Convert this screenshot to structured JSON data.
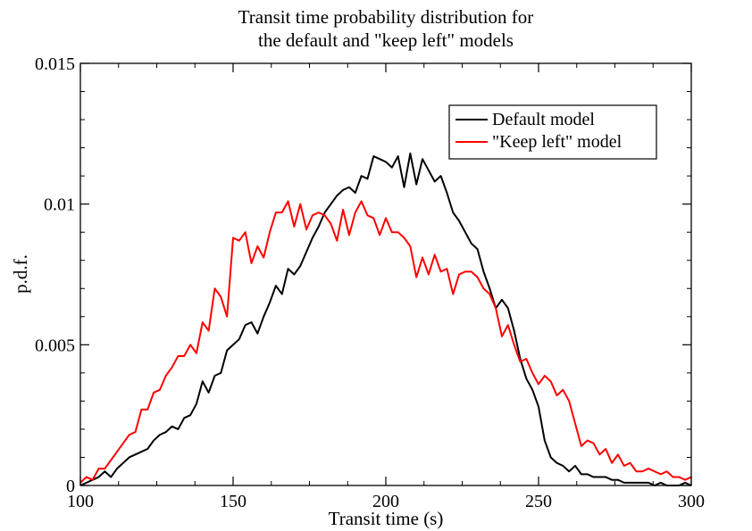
{
  "chart_data": {
    "type": "line",
    "title": [
      "Transit time probability distribution for",
      "the default and \"keep left\" models"
    ],
    "xlabel": "Transit time (s)",
    "ylabel": "p.d.f.",
    "xlim": [
      100,
      300
    ],
    "ylim": [
      0,
      0.015
    ],
    "xticks": [
      100,
      150,
      200,
      250,
      300
    ],
    "xtick_labels": [
      "100",
      "150",
      "200",
      "250",
      "300"
    ],
    "yticks": [
      0,
      0.005,
      0.01,
      0.015
    ],
    "ytick_labels": [
      "0",
      "0.005",
      "0.01",
      "0.015"
    ],
    "grid": false,
    "legend_position": "top-right",
    "x": [
      100,
      102,
      104,
      106,
      108,
      110,
      112,
      114,
      116,
      118,
      120,
      122,
      124,
      126,
      128,
      130,
      132,
      134,
      136,
      138,
      140,
      142,
      144,
      146,
      148,
      150,
      152,
      154,
      156,
      158,
      160,
      162,
      164,
      166,
      168,
      170,
      172,
      174,
      176,
      178,
      180,
      182,
      184,
      186,
      188,
      190,
      192,
      194,
      196,
      198,
      200,
      202,
      204,
      206,
      208,
      210,
      212,
      214,
      216,
      218,
      220,
      222,
      224,
      226,
      228,
      230,
      232,
      234,
      236,
      238,
      240,
      242,
      244,
      246,
      248,
      250,
      252,
      254,
      256,
      258,
      260,
      262,
      264,
      266,
      268,
      270,
      272,
      274,
      276,
      278,
      280,
      282,
      284,
      286,
      288,
      290,
      292,
      294,
      296,
      298,
      300
    ],
    "series": [
      {
        "name": "Default model",
        "color": "#000000",
        "values": [
          0.0,
          0.0001,
          0.0002,
          0.0003,
          0.0005,
          0.0003,
          0.0006,
          0.0008,
          0.001,
          0.0011,
          0.0012,
          0.0013,
          0.0016,
          0.0018,
          0.0019,
          0.0021,
          0.002,
          0.0024,
          0.0025,
          0.0029,
          0.0037,
          0.0033,
          0.0039,
          0.004,
          0.0048,
          0.005,
          0.0052,
          0.0057,
          0.0058,
          0.0054,
          0.006,
          0.0065,
          0.0071,
          0.0068,
          0.0077,
          0.0075,
          0.0078,
          0.0083,
          0.0088,
          0.0092,
          0.0097,
          0.01,
          0.0103,
          0.0105,
          0.0106,
          0.0104,
          0.011,
          0.0109,
          0.0117,
          0.0116,
          0.0115,
          0.0113,
          0.0117,
          0.0106,
          0.0118,
          0.0107,
          0.0116,
          0.0112,
          0.0108,
          0.011,
          0.0104,
          0.0097,
          0.0094,
          0.009,
          0.0086,
          0.0084,
          0.0076,
          0.007,
          0.0063,
          0.0066,
          0.0063,
          0.0055,
          0.0045,
          0.0038,
          0.0034,
          0.0028,
          0.0016,
          0.001,
          0.0008,
          0.0007,
          0.0005,
          0.0007,
          0.0004,
          0.0004,
          0.0003,
          0.0003,
          0.0003,
          0.0002,
          0.0002,
          0.0001,
          0.0001,
          0.0001,
          0.0001,
          0.0001,
          0.0,
          0.0001,
          0.0,
          0.0,
          0.0,
          0.0001,
          0.0
        ]
      },
      {
        "name": "\"Keep left\" model",
        "color": "#ff0000",
        "values": [
          0.0001,
          0.0003,
          0.0002,
          0.0006,
          0.0006,
          0.0009,
          0.0012,
          0.0015,
          0.0018,
          0.0019,
          0.0027,
          0.0027,
          0.0033,
          0.0034,
          0.0039,
          0.0042,
          0.0046,
          0.0046,
          0.005,
          0.0047,
          0.0058,
          0.0055,
          0.007,
          0.0067,
          0.006,
          0.0088,
          0.0087,
          0.009,
          0.0079,
          0.0085,
          0.0081,
          0.009,
          0.0097,
          0.0097,
          0.0101,
          0.0092,
          0.01,
          0.0091,
          0.0096,
          0.0097,
          0.0096,
          0.0093,
          0.0087,
          0.0098,
          0.0089,
          0.0097,
          0.0101,
          0.0096,
          0.0095,
          0.0089,
          0.0095,
          0.009,
          0.009,
          0.0088,
          0.0085,
          0.0074,
          0.0081,
          0.0075,
          0.0082,
          0.0076,
          0.0077,
          0.0068,
          0.0075,
          0.0076,
          0.0076,
          0.0074,
          0.007,
          0.0068,
          0.0063,
          0.0053,
          0.0057,
          0.005,
          0.0044,
          0.0045,
          0.004,
          0.0036,
          0.0039,
          0.0037,
          0.0032,
          0.0034,
          0.003,
          0.0022,
          0.0014,
          0.0016,
          0.0015,
          0.0011,
          0.0013,
          0.0008,
          0.0011,
          0.0007,
          0.0008,
          0.0005,
          0.0005,
          0.0006,
          0.0005,
          0.0004,
          0.0005,
          0.0003,
          0.0003,
          0.0002,
          0.0003
        ]
      }
    ]
  }
}
